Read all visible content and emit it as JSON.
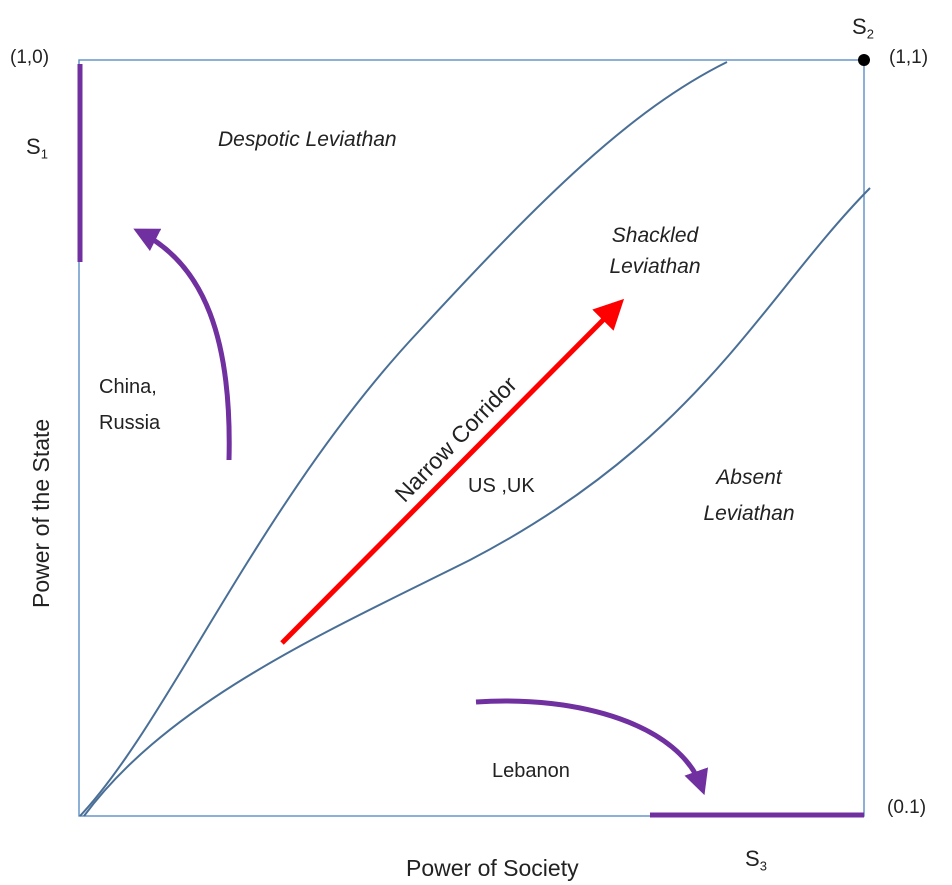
{
  "labels": {
    "corner_top_left": "(1,0)",
    "corner_top_right": "(1,1)",
    "corner_bottom_right": "(0.1)",
    "s1": {
      "letter": "S",
      "sub": "1"
    },
    "s2": {
      "letter": "S",
      "sub": "2"
    },
    "s3": {
      "letter": "S",
      "sub": "3"
    },
    "despotic": "Despotic Leviathan",
    "shackled_line1": "Shackled",
    "shackled_line2": "Leviathan",
    "absent_line1": "Absent",
    "absent_line2": "Leviathan",
    "corridor": "Narrow Corridor",
    "china_line1": "China,",
    "china_line2": "Russia",
    "us_uk": "US ,UK",
    "lebanon": "Lebanon",
    "y_axis": "Power of the State",
    "x_axis": "Power of Society"
  },
  "colors": {
    "frame": "#5b8fc7",
    "curve": "#4a6f96",
    "purple": "#7030a0",
    "red": "#ff0000",
    "text": "#222222"
  }
}
